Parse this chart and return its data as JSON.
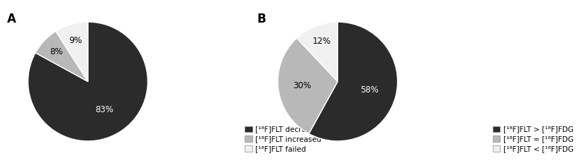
{
  "chart_A": {
    "values": [
      83,
      8,
      9
    ],
    "colors": [
      "#2b2b2b",
      "#b8b8b8",
      "#f0f0f0"
    ],
    "labels": [
      "83%",
      "8%",
      "9%"
    ],
    "label_colors": [
      "#ffffff",
      "#000000",
      "#000000"
    ],
    "label_radii": [
      0.55,
      0.72,
      0.72
    ],
    "legend_labels": [
      "[¹⁸F]FLT decreased",
      "[¹⁸F]FLT increased",
      "[¹⁸F]FLT failed"
    ],
    "startangle": 90,
    "title": "A"
  },
  "chart_B": {
    "values": [
      58,
      30,
      12
    ],
    "colors": [
      "#2b2b2b",
      "#b8b8b8",
      "#f0f0f0"
    ],
    "labels": [
      "58%",
      "30%",
      "12%"
    ],
    "label_colors": [
      "#ffffff",
      "#000000",
      "#000000"
    ],
    "label_radii": [
      0.55,
      0.6,
      0.72
    ],
    "legend_labels": [
      "[¹⁸F]FLT > [¹⁸F]FDG",
      "[¹⁸F]FLT = [¹⁸F]FDG",
      "[¹⁸F]FLT < [¹⁸F]FDG"
    ],
    "startangle": 90,
    "title": "B"
  },
  "background_color": "#ffffff",
  "text_color": "#000000",
  "label_fontsize": 8.5,
  "legend_fontsize": 7.5,
  "title_fontsize": 12
}
